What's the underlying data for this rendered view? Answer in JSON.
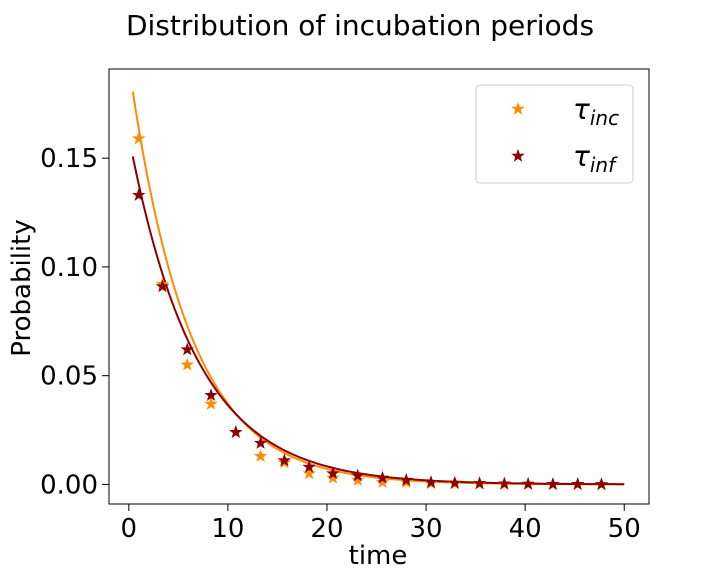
{
  "chart_data": {
    "type": "line",
    "title": "Distribution of incubation periods",
    "xlabel": "time",
    "ylabel": "Probability",
    "xlim": [
      -2,
      52.5
    ],
    "ylim": [
      -0.009,
      0.191
    ],
    "xticks": [
      0,
      10,
      20,
      30,
      40,
      50
    ],
    "yticks": [
      0.0,
      0.05,
      0.1,
      0.15
    ],
    "ytick_labels": [
      "0.00",
      "0.05",
      "0.10",
      "0.15"
    ],
    "grid": false,
    "legend_position": "top-right",
    "series": [
      {
        "name": "τ_inc",
        "legend_symbol": "τ",
        "legend_sub": "inc",
        "color": "#ff8c00",
        "marker": "star",
        "points_x": [
          1.0,
          3.4,
          5.9,
          8.3,
          10.8,
          13.3,
          15.7,
          18.2,
          20.6,
          23.1,
          25.6,
          28.0,
          30.5,
          32.9,
          35.4,
          37.9,
          40.3,
          42.8,
          45.3,
          47.7
        ],
        "points_y": [
          0.159,
          0.092,
          0.055,
          0.037,
          0.024,
          0.013,
          0.01,
          0.005,
          0.003,
          0.002,
          0.001,
          0.001,
          0.0005,
          0.0003,
          0.0002,
          0.0001,
          0.0001,
          0.0,
          0.0,
          0.0
        ],
        "curve": {
          "amplitude": 0.193,
          "decay_per_time": 0.165,
          "x_start": 0.4,
          "x_end": 50
        }
      },
      {
        "name": "τ_inf",
        "legend_symbol": "τ",
        "legend_sub": "inf",
        "color": "#8b0000",
        "marker": "star",
        "points_x": [
          1.0,
          3.4,
          5.9,
          8.3,
          10.8,
          13.3,
          15.7,
          18.2,
          20.6,
          23.1,
          25.6,
          28.0,
          30.5,
          32.9,
          35.4,
          37.9,
          40.3,
          42.8,
          45.3,
          47.7
        ],
        "points_y": [
          0.133,
          0.091,
          0.062,
          0.041,
          0.024,
          0.019,
          0.011,
          0.008,
          0.005,
          0.004,
          0.003,
          0.002,
          0.001,
          0.0007,
          0.0005,
          0.0003,
          0.0002,
          0.0001,
          0.0001,
          0.0
        ],
        "curve": {
          "amplitude": 0.16,
          "decay_per_time": 0.148,
          "x_start": 0.4,
          "x_end": 50
        }
      }
    ]
  }
}
